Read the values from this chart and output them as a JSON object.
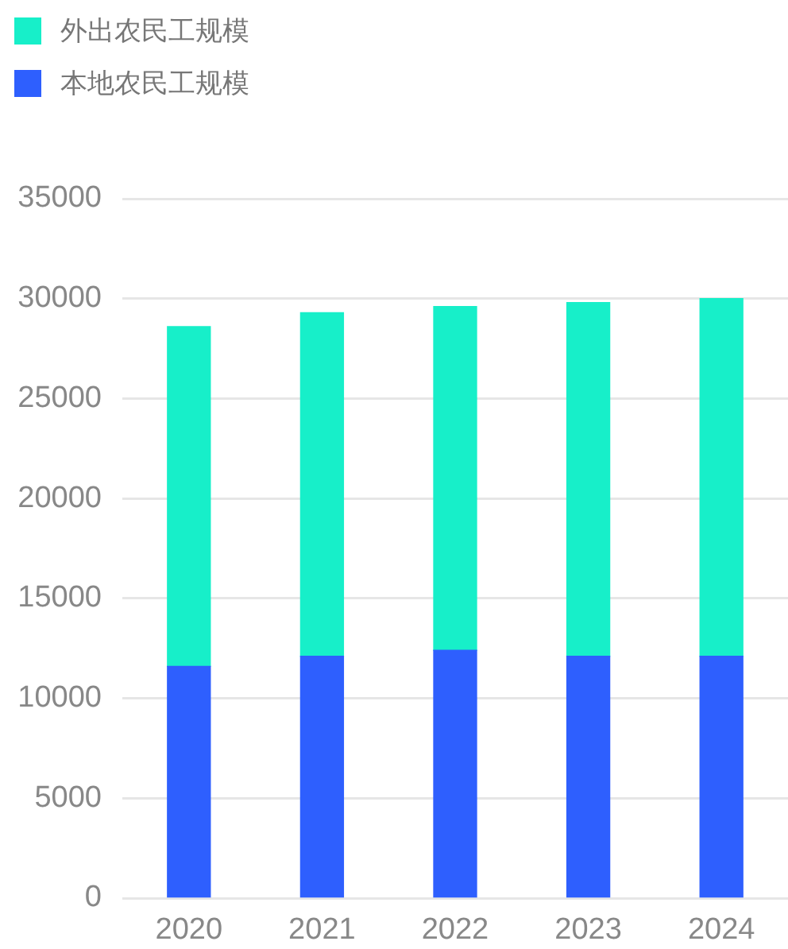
{
  "chart_data": {
    "type": "bar",
    "categories": [
      "2020",
      "2021",
      "2022",
      "2023",
      "2024"
    ],
    "series": [
      {
        "name": "本地农民工规模",
        "color": "#2e5ffe",
        "values": [
          11600,
          12100,
          12400,
          12100,
          12100
        ]
      },
      {
        "name": "外出农民工规模",
        "color": "#17efc9",
        "values": [
          17000,
          17200,
          17200,
          17700,
          17900
        ]
      }
    ],
    "stacked": true,
    "ylim": [
      0,
      35000
    ],
    "yticks": [
      0,
      5000,
      10000,
      15000,
      20000,
      25000,
      30000,
      35000
    ],
    "grid": "y",
    "legend": "top left"
  }
}
